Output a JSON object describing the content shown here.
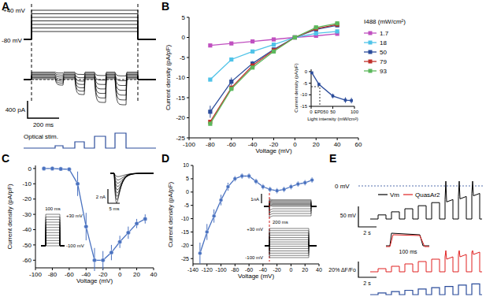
{
  "chart_data": [
    {
      "type": "diagram",
      "title": "A",
      "annotations": [
        "+40 mV",
        "-80 mV",
        "400 pA",
        "200 ms",
        "Optical stim."
      ]
    },
    {
      "type": "line",
      "title": "B",
      "x_label": "Voltage (mV)",
      "y_label": "Current density (pA/pF)",
      "x": [
        -80,
        -60,
        -40,
        -20,
        0,
        20,
        40
      ],
      "series": [
        {
          "name": "1.7",
          "color": "#c050c0",
          "values": [
            -2,
            -1.5,
            -1,
            -0.5,
            0,
            0.4,
            0.9
          ]
        },
        {
          "name": "18",
          "color": "#4fc3e8",
          "values": [
            -10.5,
            -5.5,
            -3.5,
            -1.8,
            0,
            1,
            1.5
          ]
        },
        {
          "name": "50",
          "color": "#2b4c9b",
          "values": [
            -18.5,
            -11,
            -6.5,
            -3,
            0,
            2,
            3
          ],
          "errors": [
            1.5,
            1,
            0.6,
            0.4,
            0.2,
            0.3,
            0.4
          ]
        },
        {
          "name": "79",
          "color": "#c0302a",
          "values": [
            -21,
            -12.5,
            -7,
            -3.2,
            0,
            2.2,
            3.2
          ]
        },
        {
          "name": "93",
          "color": "#5cb85c",
          "values": [
            -21.5,
            -12.8,
            -7.5,
            -3.5,
            0,
            2.5,
            3.5
          ]
        }
      ],
      "xlim": [
        -100,
        60
      ],
      "xticks": [
        -100,
        -80,
        -60,
        -40,
        -20,
        0,
        20,
        40,
        60
      ],
      "ylim": [
        -25,
        5
      ],
      "yticks": [
        -25,
        -20,
        -15,
        -10,
        -5,
        0,
        5
      ],
      "marker": "square",
      "line_style": "solid",
      "legend": "right",
      "legend_title": "I488 (mW/cm²)",
      "inset": {
        "type": "line",
        "x_label": "Light intensity (mW/cm²)",
        "y_label": "Current density (pA/pF)",
        "x": [
          1.7,
          18,
          50,
          79,
          93
        ],
        "values": [
          -0.5,
          -5.5,
          -10.5,
          -12.3,
          -12.5
        ],
        "errors": [
          0.3,
          0.8,
          1,
          1.2,
          1.2
        ],
        "color": "#2b4c9b",
        "marker": "square",
        "xlim": [
          0,
          100
        ],
        "xticks": [
          0,
          50,
          100
        ],
        "ylim": [
          -15,
          1
        ],
        "yticks": [
          -15,
          -10,
          -5,
          0
        ],
        "annotations": [
          {
            "text": "EPD50",
            "x": 20,
            "y": -6.5
          }
        ]
      }
    },
    {
      "type": "line",
      "title": "C",
      "x_label": "Voltage (mV)",
      "y_label": "Current density (pA/pF)",
      "x": [
        -90,
        -80,
        -70,
        -60,
        -50,
        -40,
        -30,
        -20,
        -10,
        0,
        10,
        20,
        30
      ],
      "values": [
        0,
        0,
        -0.3,
        -0.5,
        -10,
        -38,
        -60,
        -60,
        -55,
        -48,
        -42,
        -36,
        -33
      ],
      "errors": [
        0.2,
        0.3,
        0.3,
        0.5,
        8,
        9,
        8,
        6,
        5,
        4,
        4,
        3,
        3
      ],
      "color": "#4a72c0",
      "marker": "circle",
      "xlim": [
        -100,
        40
      ],
      "xticks": [
        -100,
        -80,
        -60,
        -40,
        -20,
        0,
        20,
        40
      ],
      "ylim": [
        -65,
        2
      ],
      "yticks": [
        -60,
        -50,
        -40,
        -30,
        -20,
        -10,
        0
      ],
      "annotations": [
        "2 nA",
        "5 ms",
        "+30 mV",
        "-100 mV",
        "100 ms"
      ]
    },
    {
      "type": "line",
      "title": "D",
      "x_label": "Voltage (mV)",
      "y_label": "Current density (pA/pF)",
      "x": [
        -130,
        -120,
        -110,
        -100,
        -90,
        -80,
        -70,
        -60,
        -50,
        -40,
        -30,
        -20,
        -10,
        0,
        10,
        20,
        30
      ],
      "values": [
        -23,
        -15,
        -9,
        -3,
        2,
        5,
        6,
        6,
        4,
        2,
        1,
        0.5,
        1,
        2,
        3,
        3.5,
        4.5
      ],
      "errors": [
        4,
        3,
        2.5,
        2,
        1.5,
        1,
        1,
        1,
        1,
        1,
        1,
        1,
        1,
        1,
        1,
        1,
        1
      ],
      "color": "#4a72c0",
      "marker": "circle",
      "xlim": [
        -140,
        40
      ],
      "xticks": [
        -140,
        -120,
        -100,
        -80,
        -60,
        -40,
        -20,
        0,
        20,
        40
      ],
      "ylim": [
        -27,
        10
      ],
      "yticks": [
        -25,
        -20,
        -15,
        -10,
        -5,
        0,
        5,
        10
      ],
      "annotations": [
        "1nA",
        "200 ms",
        "+30 mV",
        "-100 mV"
      ]
    },
    {
      "type": "diagram",
      "title": "E",
      "annotations": [
        "0 mV",
        "50 mV",
        "2 s",
        "Vm",
        "QuasAr2",
        "100 ms",
        "20% ΔF/Fo",
        "2 s"
      ]
    }
  ]
}
